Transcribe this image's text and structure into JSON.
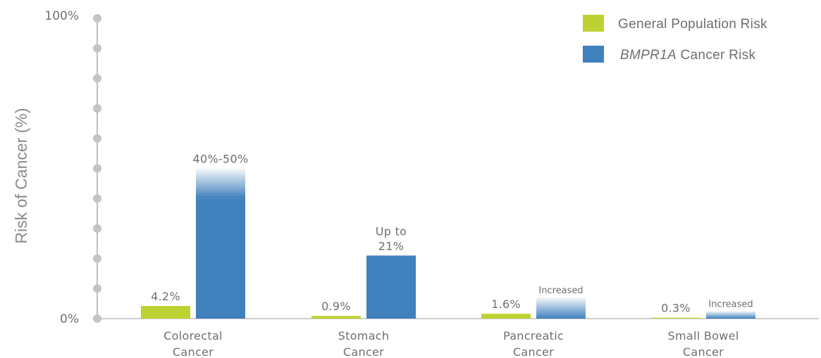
{
  "chart_data": {
    "type": "bar",
    "ylabel": "Risk of Cancer (%)",
    "xlabel": "",
    "ylim": [
      0,
      100
    ],
    "y_tick_labels": [
      "0%",
      "100%"
    ],
    "categories": [
      [
        "Colorectal",
        "Cancer"
      ],
      [
        "Stomach",
        "Cancer"
      ],
      [
        "Pancreatic",
        "Cancer"
      ],
      [
        "Small Bowel",
        "Cancer"
      ]
    ],
    "legend_position": "top-right",
    "series": [
      {
        "name": "General Population Risk",
        "color": "#bdd232",
        "values": [
          4.2,
          0.9,
          1.6,
          0.3
        ],
        "labels": [
          [
            "4.2%"
          ],
          [
            "0.9%"
          ],
          [
            "1.6%"
          ],
          [
            "0.3%"
          ]
        ]
      },
      {
        "name_italic": "BMPR1A",
        "name_rest": " Cancer Risk",
        "color": "#4080bd",
        "values": [
          50,
          21,
          7,
          2.5
        ],
        "solid_to": [
          40,
          21,
          0,
          0
        ],
        "labels": [
          [
            "40%-50%"
          ],
          [
            "Up to",
            "21%"
          ],
          [
            "Increased"
          ],
          [
            "Increased"
          ]
        ]
      }
    ]
  }
}
